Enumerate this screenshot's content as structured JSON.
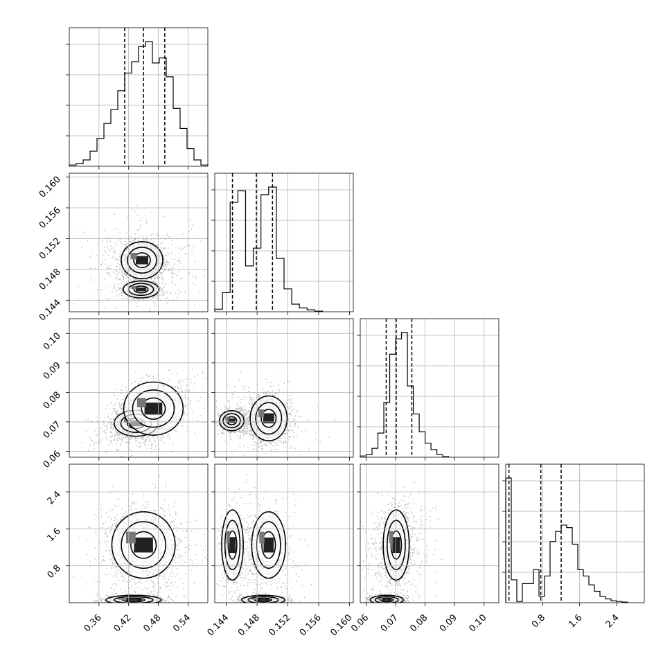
{
  "figure": {
    "type": "corner-plot"
  },
  "chart_data": {
    "type": "corner",
    "grid": true,
    "parameters": [
      {
        "range": [
          0.3,
          0.58
        ],
        "ticks": [
          0.36,
          0.42,
          0.48,
          0.54
        ],
        "tick_labels": [
          "0.36",
          "0.42",
          "0.48",
          "0.54"
        ],
        "quantiles": [
          0.412,
          0.45,
          0.493
        ],
        "hist": {
          "edges": [
            0.3,
            0.314,
            0.328,
            0.342,
            0.356,
            0.37,
            0.384,
            0.398,
            0.412,
            0.426,
            0.44,
            0.454,
            0.468,
            0.482,
            0.496,
            0.51,
            0.524,
            0.538,
            0.552,
            0.566,
            0.58
          ],
          "heights": [
            0.01,
            0.02,
            0.05,
            0.12,
            0.22,
            0.34,
            0.45,
            0.6,
            0.74,
            0.83,
            0.95,
            0.99,
            0.82,
            0.86,
            0.71,
            0.46,
            0.3,
            0.14,
            0.05,
            0.01
          ]
        }
      },
      {
        "range": [
          0.1425,
          0.1605
        ],
        "ticks": [
          0.144,
          0.148,
          0.152,
          0.156,
          0.16
        ],
        "tick_labels": [
          "0.144",
          "0.148",
          "0.152",
          "0.156",
          "0.160"
        ],
        "quantiles": [
          0.1448,
          0.1479,
          0.15
        ],
        "hist": {
          "edges": [
            0.1425,
            0.1435,
            0.1445,
            0.1455,
            0.1465,
            0.1475,
            0.1485,
            0.1495,
            0.1505,
            0.1515,
            0.1525,
            0.1535,
            0.1545,
            0.1555,
            0.1565
          ],
          "heights": [
            0.02,
            0.15,
            0.86,
            0.95,
            0.36,
            0.5,
            0.92,
            0.98,
            0.42,
            0.18,
            0.06,
            0.03,
            0.015,
            0.005
          ]
        }
      },
      {
        "range": [
          0.058,
          0.105
        ],
        "ticks": [
          0.06,
          0.07,
          0.08,
          0.09,
          0.1
        ],
        "tick_labels": [
          "0.06",
          "0.07",
          "0.08",
          "0.09",
          "0.10"
        ],
        "quantiles": [
          0.0668,
          0.0702,
          0.0755
        ],
        "hist": {
          "edges": [
            0.058,
            0.06,
            0.062,
            0.064,
            0.066,
            0.068,
            0.07,
            0.072,
            0.074,
            0.076,
            0.078,
            0.08,
            0.082,
            0.084,
            0.086,
            0.088
          ],
          "heights": [
            0.01,
            0.02,
            0.07,
            0.19,
            0.43,
            0.81,
            0.93,
            0.98,
            0.56,
            0.34,
            0.2,
            0.11,
            0.06,
            0.02,
            0.005
          ]
        }
      },
      {
        "range": [
          0.0,
          3.0
        ],
        "ticks": [
          0.8,
          1.6,
          2.4
        ],
        "tick_labels": [
          "0.8",
          "1.6",
          "2.4"
        ],
        "quantiles": [
          0.07,
          0.76,
          1.2
        ],
        "hist": {
          "edges": [
            0.0,
            0.12,
            0.24,
            0.36,
            0.48,
            0.6,
            0.72,
            0.84,
            0.96,
            1.08,
            1.2,
            1.32,
            1.44,
            1.56,
            1.68,
            1.8,
            1.92,
            2.04,
            2.16,
            2.28,
            2.4,
            2.52,
            2.64
          ],
          "heights": [
            0.98,
            0.18,
            0.01,
            0.15,
            0.15,
            0.26,
            0.05,
            0.21,
            0.48,
            0.56,
            0.61,
            0.59,
            0.46,
            0.26,
            0.21,
            0.14,
            0.09,
            0.05,
            0.03,
            0.015,
            0.01,
            0.005
          ]
        }
      }
    ],
    "pairs": [
      {
        "row": 1,
        "col": 0,
        "cloud": [
          0.45,
          0.1485,
          0.05,
          0.0028,
          0.0
        ],
        "blobs": [
          [
            0.447,
            0.1492,
            0.021,
            0.0012,
            0.55
          ],
          [
            0.445,
            0.1454,
            0.018,
            0.00055,
            0.45
          ]
        ]
      },
      {
        "row": 2,
        "col": 0,
        "cloud": [
          0.45,
          0.0715,
          0.05,
          0.0065,
          0.6
        ],
        "blobs": [
          [
            0.435,
            0.0695,
            0.022,
            0.0022,
            0.5
          ],
          [
            0.47,
            0.0745,
            0.03,
            0.0045,
            0.3
          ]
        ]
      },
      {
        "row": 3,
        "col": 0,
        "cloud": [
          0.45,
          1.1,
          0.05,
          0.6,
          0.0
        ],
        "blobs": [
          [
            0.45,
            1.25,
            0.032,
            0.36,
            0.35
          ],
          [
            0.43,
            0.06,
            0.028,
            0.05,
            0.5
          ]
        ]
      },
      {
        "row": 2,
        "col": 1,
        "cloud": [
          0.148,
          0.0705,
          0.0028,
          0.0055,
          0.0
        ],
        "blobs": [
          [
            0.1447,
            0.0704,
            0.0008,
            0.0017,
            0.5
          ],
          [
            0.1495,
            0.0712,
            0.0012,
            0.0038,
            0.5
          ]
        ]
      },
      {
        "row": 3,
        "col": 1,
        "cloud": [
          0.1475,
          1.1,
          0.0028,
          0.6,
          0.0
        ],
        "blobs": [
          [
            0.1448,
            1.25,
            0.0007,
            0.38,
            0.25
          ],
          [
            0.1495,
            1.25,
            0.0011,
            0.36,
            0.25
          ],
          [
            0.1488,
            0.06,
            0.0014,
            0.05,
            0.5
          ]
        ]
      },
      {
        "row": 3,
        "col": 2,
        "cloud": [
          0.0705,
          1.1,
          0.0055,
          0.6,
          0.2
        ],
        "blobs": [
          [
            0.0702,
            1.25,
            0.0022,
            0.38,
            0.4
          ],
          [
            0.067,
            0.06,
            0.0028,
            0.05,
            0.6
          ]
        ]
      }
    ]
  }
}
